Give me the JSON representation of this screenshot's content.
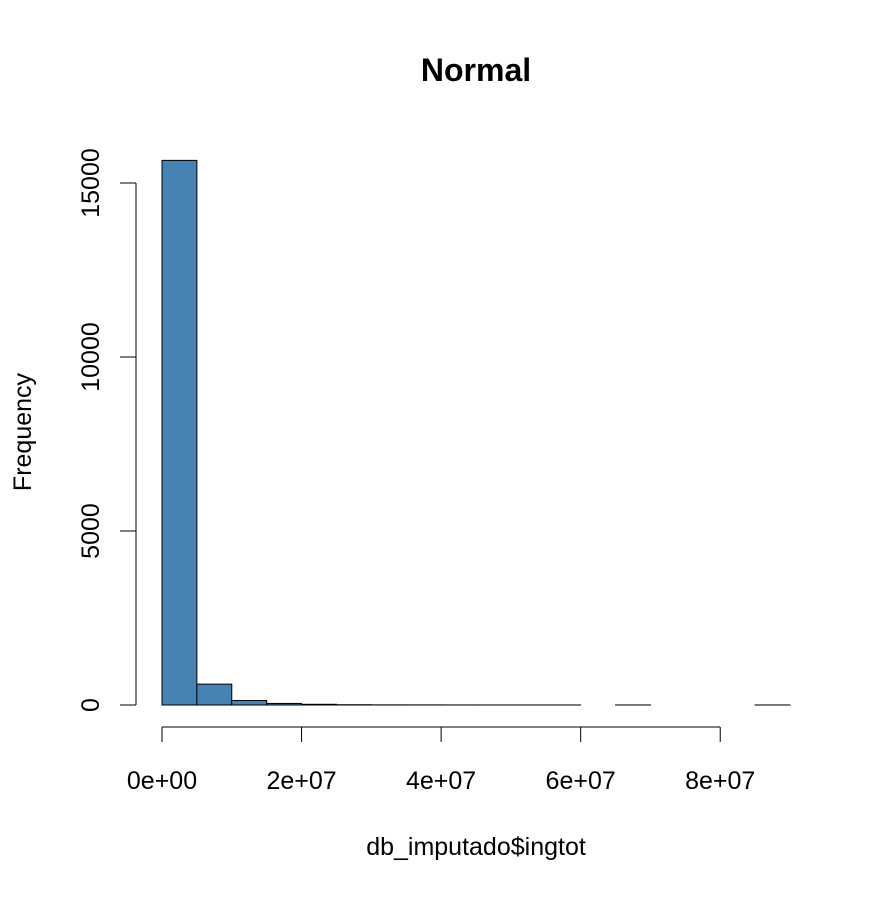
{
  "chart_data": {
    "type": "bar",
    "title": "Normal",
    "xlabel": "db_imputado$ingtot",
    "ylabel": "Frequency",
    "bar_color": "#4682b4",
    "bins": [
      {
        "x0": 0,
        "x1": 5000000,
        "count": 15650
      },
      {
        "x0": 5000000,
        "x1": 10000000,
        "count": 600
      },
      {
        "x0": 10000000,
        "x1": 15000000,
        "count": 130
      },
      {
        "x0": 15000000,
        "x1": 20000000,
        "count": 45
      },
      {
        "x0": 20000000,
        "x1": 25000000,
        "count": 20
      },
      {
        "x0": 25000000,
        "x1": 30000000,
        "count": 8
      },
      {
        "x0": 30000000,
        "x1": 35000000,
        "count": 4
      },
      {
        "x0": 35000000,
        "x1": 40000000,
        "count": 3
      },
      {
        "x0": 40000000,
        "x1": 45000000,
        "count": 2
      },
      {
        "x0": 45000000,
        "x1": 50000000,
        "count": 1
      },
      {
        "x0": 50000000,
        "x1": 55000000,
        "count": 1
      },
      {
        "x0": 55000000,
        "x1": 60000000,
        "count": 1
      },
      {
        "x0": 60000000,
        "x1": 65000000,
        "count": 0
      },
      {
        "x0": 65000000,
        "x1": 70000000,
        "count": 1
      },
      {
        "x0": 70000000,
        "x1": 75000000,
        "count": 0
      },
      {
        "x0": 75000000,
        "x1": 80000000,
        "count": 0
      },
      {
        "x0": 80000000,
        "x1": 85000000,
        "count": 0
      },
      {
        "x0": 85000000,
        "x1": 90000000,
        "count": 1
      }
    ],
    "xticks": [
      0,
      20000000,
      40000000,
      60000000,
      80000000
    ],
    "xtick_labels": [
      "0e+00",
      "2e+07",
      "4e+07",
      "6e+07",
      "8e+07"
    ],
    "yticks": [
      0,
      5000,
      10000,
      15000
    ],
    "ytick_labels": [
      "0",
      "5000",
      "10000",
      "15000"
    ],
    "xlim": [
      0,
      90000000
    ],
    "ylim": [
      0,
      15650
    ],
    "grid": false
  }
}
